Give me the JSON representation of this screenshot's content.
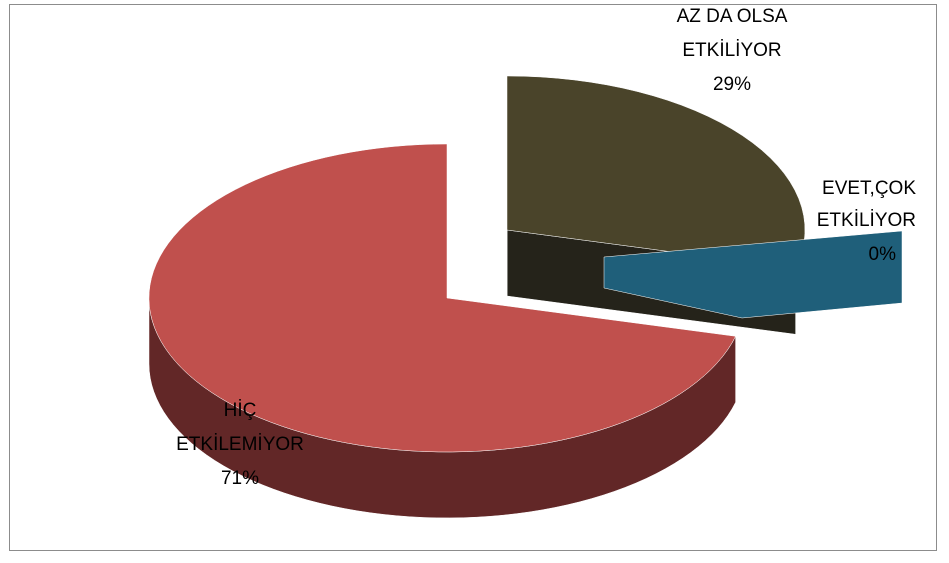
{
  "chart_data": {
    "type": "pie",
    "style": "3d-exploded",
    "title": "",
    "slices": [
      {
        "category_line1": "HİÇ",
        "category_line2": "ETKİLEMİYOR",
        "percent_label": "71%",
        "value": 71,
        "color": "#c0504d"
      },
      {
        "category_line1": "AZ DA OLSA",
        "category_line2": "ETKİLİYOR",
        "percent_label": "29%",
        "value": 29,
        "color": "#4a442a"
      },
      {
        "category_line1": "EVET,ÇOK",
        "category_line2": "ETKİLİYOR",
        "percent_label": "0%",
        "value": 0,
        "color": "#1f5f7a"
      }
    ],
    "legend": "none"
  }
}
